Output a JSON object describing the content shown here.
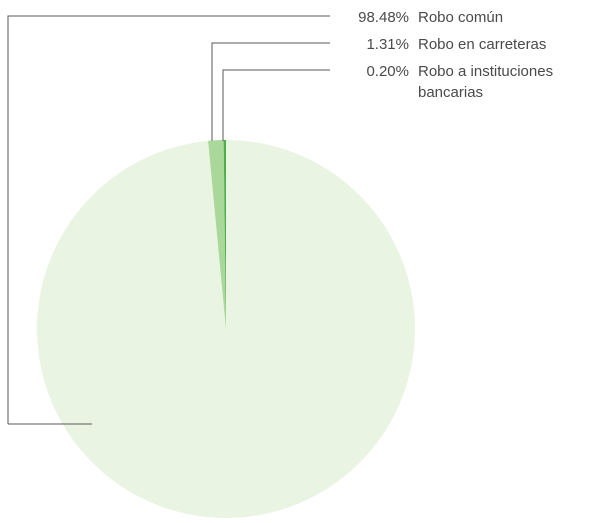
{
  "chart_data": {
    "type": "pie",
    "slices": [
      {
        "percent_label": "98.48%",
        "label_lines": [
          "Robo común"
        ],
        "value": 98.48,
        "color": "#eaf4e3"
      },
      {
        "percent_label": "1.31%",
        "label_lines": [
          "Robo en carreteras"
        ],
        "value": 1.31,
        "color": "#a9d89a"
      },
      {
        "percent_label": "0.20%",
        "label_lines": [
          "Robo a instituciones",
          "bancarias"
        ],
        "value": 0.2,
        "color": "#4bb04a"
      }
    ],
    "legend_placement": "top-right",
    "start_angle": "12 o'clock",
    "direction": "counterclockwise"
  }
}
